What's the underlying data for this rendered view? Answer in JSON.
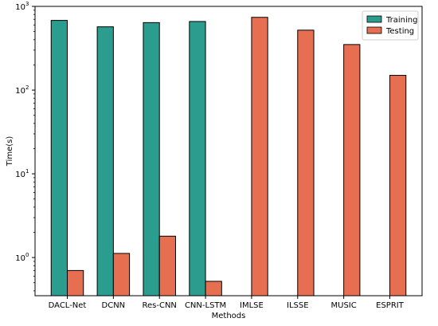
{
  "chart_data": {
    "type": "bar",
    "title": "",
    "xlabel": "Methods",
    "ylabel": "Time(s)",
    "yscale": "log",
    "ylim": [
      0.35,
      1000
    ],
    "categories": [
      "DACL-Net",
      "DCNN",
      "Res-CNN",
      "CNN-LSTM",
      "IMLSE",
      "ILSSE",
      "MUSIC",
      "ESPRIT"
    ],
    "series": [
      {
        "name": "Training",
        "color": "#2a9d8f",
        "values": [
          680,
          570,
          640,
          660,
          null,
          null,
          null,
          null
        ]
      },
      {
        "name": "Testing",
        "color": "#e76f51",
        "values": [
          0.7,
          1.12,
          1.8,
          0.52,
          740,
          520,
          350,
          150
        ]
      }
    ],
    "yticks": [
      {
        "value": 1,
        "base": "10",
        "exp": "0"
      },
      {
        "value": 10,
        "base": "10",
        "exp": "1"
      },
      {
        "value": 100,
        "base": "10",
        "exp": "2"
      },
      {
        "value": 1000,
        "base": "10",
        "exp": "3"
      }
    ],
    "legend": {
      "position": "upper-right"
    },
    "grid": false
  }
}
